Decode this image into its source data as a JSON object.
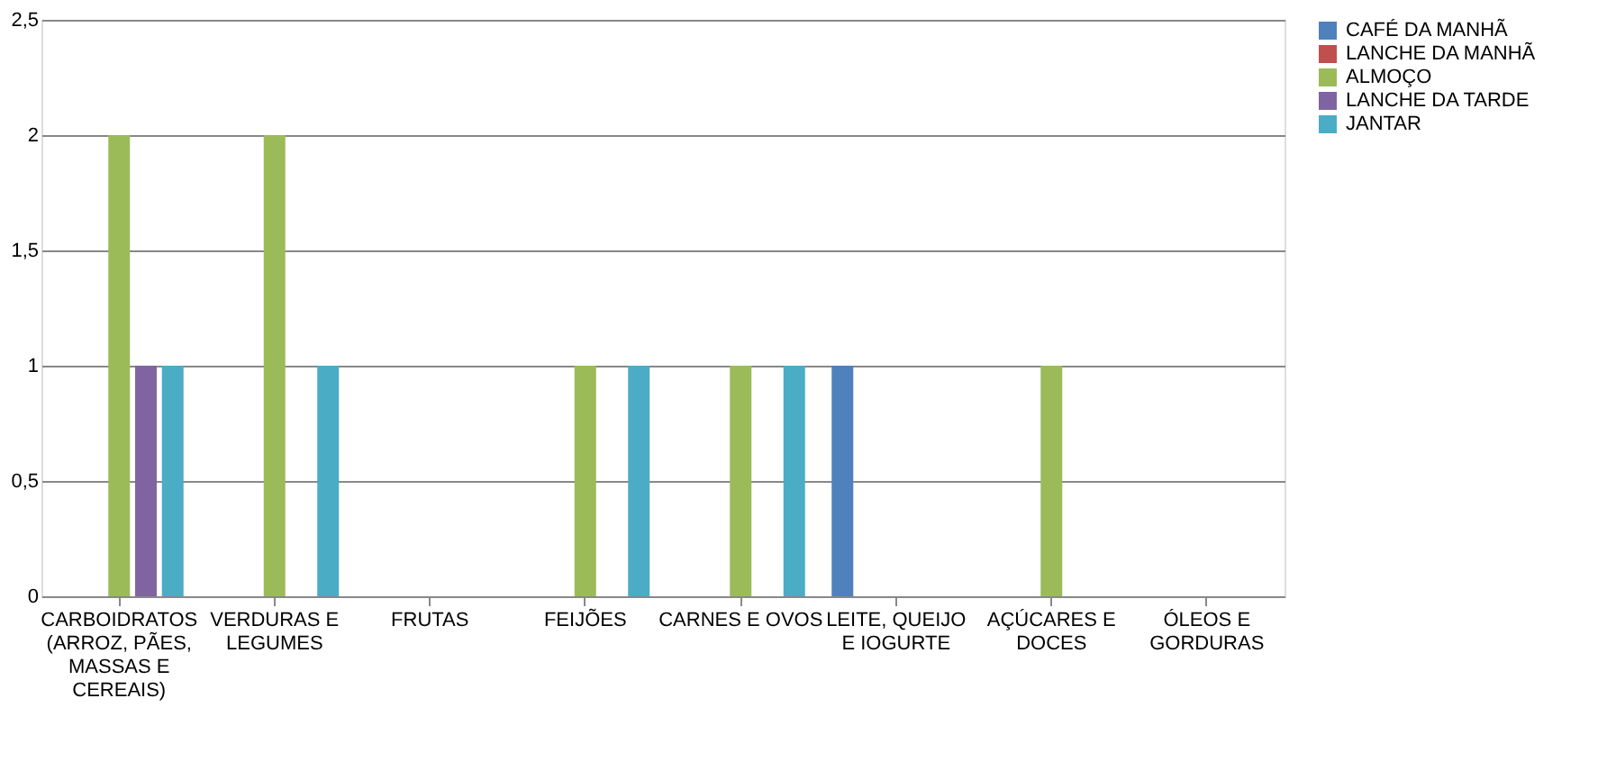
{
  "chart_data": {
    "type": "bar",
    "categories": [
      "CARBOIDRATOS (ARROZ, PÃES, MASSAS E CEREAIS)",
      "VERDURAS E LEGUMES",
      "FRUTAS",
      "FEIJÕES",
      "CARNES E OVOS",
      "LEITE, QUEIJO E IOGURTE",
      "AÇÚCARES E DOCES",
      "ÓLEOS E GORDURAS"
    ],
    "series": [
      {
        "name": "CAFÉ DA MANHÃ",
        "color": "#4f81bd",
        "values": [
          0,
          0,
          0,
          0,
          0,
          1,
          0,
          0
        ]
      },
      {
        "name": "LANCHE DA MANHÃ",
        "color": "#c0504d",
        "values": [
          0,
          0,
          0,
          0,
          0,
          0,
          0,
          0
        ]
      },
      {
        "name": "ALMOÇO",
        "color": "#9bbb59",
        "values": [
          2,
          2,
          0,
          1,
          1,
          0,
          1,
          0
        ]
      },
      {
        "name": "LANCHE DA TARDE",
        "color": "#8064a2",
        "values": [
          1,
          0,
          0,
          0,
          0,
          0,
          0,
          0
        ]
      },
      {
        "name": "JANTAR",
        "color": "#4bacc6",
        "values": [
          1,
          1,
          0,
          1,
          1,
          0,
          0,
          0
        ]
      }
    ],
    "ylim": [
      0,
      2.5
    ],
    "yticks": [
      0,
      {
        "value": 0.5,
        "label": "0,5"
      },
      1,
      {
        "value": 1.5,
        "label": "1,5"
      },
      2,
      {
        "value": 2.5,
        "label": "2,5"
      }
    ],
    "grid": "y",
    "legend": "right"
  }
}
